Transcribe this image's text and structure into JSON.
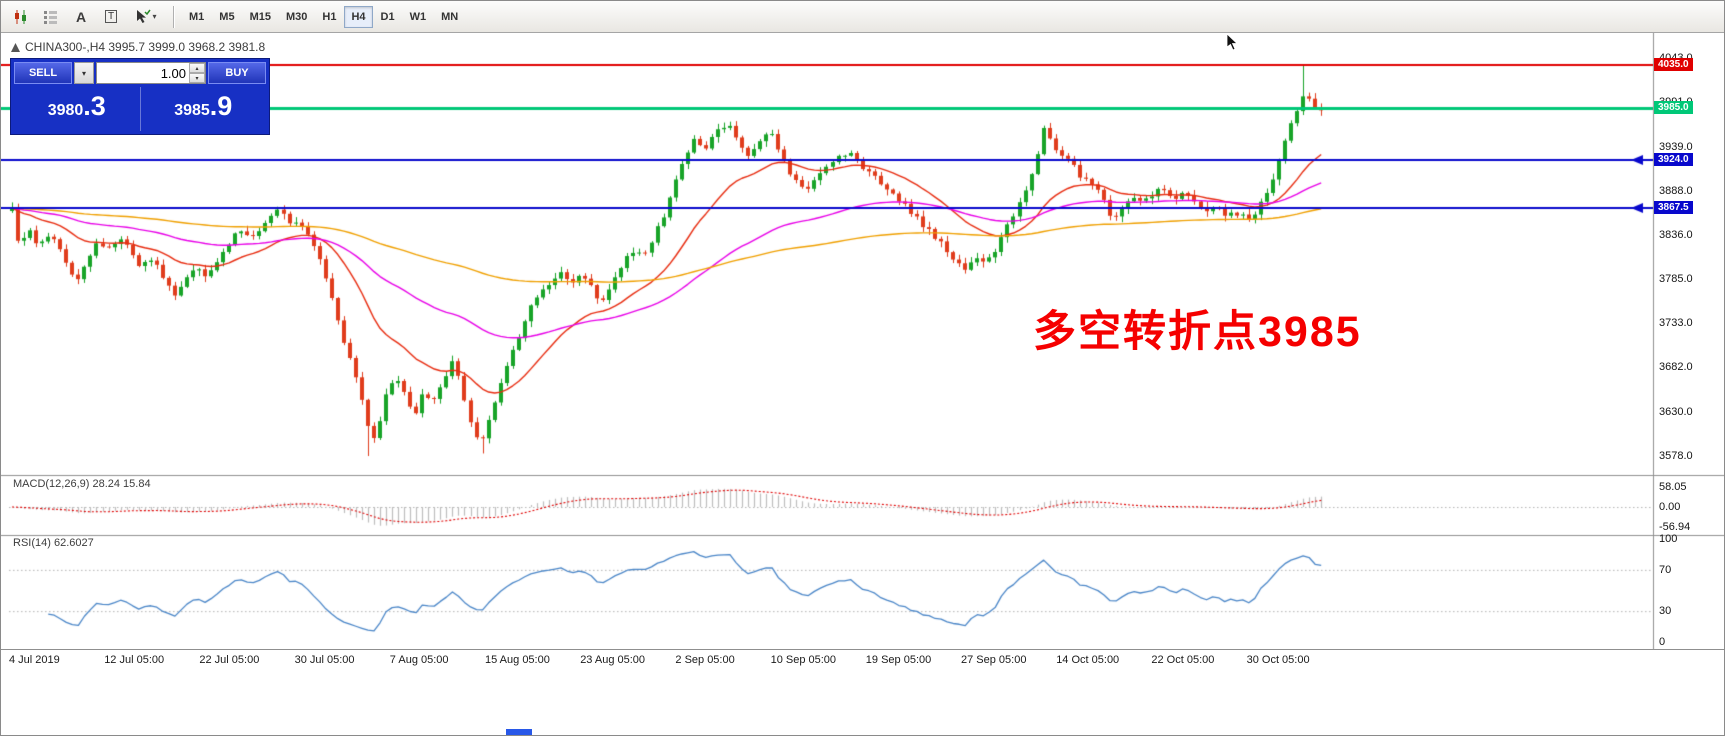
{
  "toolbar": {
    "timeframes": [
      "M1",
      "M5",
      "M15",
      "M30",
      "H1",
      "H4",
      "D1",
      "W1",
      "MN"
    ],
    "active_timeframe": "H4",
    "text_tool_label": "A",
    "label_tool_label": "T"
  },
  "glyphs": {
    "dropdown": "▾",
    "spin_up": "▴",
    "spin_down": "▾"
  },
  "chart": {
    "symbol": "CHINA300-",
    "period": "H4",
    "ohlc_header": "CHINA300-,H4  3995.7 3999.0 3968.2 3981.8",
    "open": "3995.7",
    "high": "3999.0",
    "low": "3968.2",
    "close": "3981.8"
  },
  "trade_panel": {
    "sell_label": "SELL",
    "buy_label": "BUY",
    "volume": "1.00",
    "sell_price_int": "3980",
    "sell_price_dec": ".3",
    "buy_price_int": "3985",
    "buy_price_dec": ".9"
  },
  "annotation": {
    "text": "多空转折点3985",
    "color": "#f50000"
  },
  "price_axis": {
    "ticks": [
      4043.0,
      3991.0,
      3939.0,
      3888.0,
      3836.0,
      3785.0,
      3733.0,
      3682.0,
      3630.0,
      3578.0
    ]
  },
  "hlines": [
    {
      "price": 4035.0,
      "label": "4035.0",
      "color": "#e00000",
      "width": 2,
      "arrow": false
    },
    {
      "price": 3985.0,
      "label": "3985.0",
      "color": "#00c878",
      "width": 3,
      "arrow": false
    },
    {
      "price": 3924.0,
      "label": "3924.0",
      "color": "#0808cc",
      "width": 2,
      "arrow": true
    },
    {
      "price": 3867.5,
      "label": "3867.5",
      "color": "#0808cc",
      "width": 2,
      "arrow": true
    }
  ],
  "macd": {
    "label": "MACD(12,26,9) 28.24 15.84",
    "ticks": [
      "58.05",
      "0.00",
      "-56.94"
    ],
    "tick_values": [
      58.05,
      0,
      -56.94
    ],
    "current_macd": 28.24,
    "current_signal": 15.84
  },
  "rsi": {
    "label": "RSI(14) 62.6027",
    "ticks": [
      "100",
      "70",
      "30",
      "0"
    ],
    "tick_values": [
      100,
      70,
      30,
      0
    ],
    "levels": [
      70,
      30
    ],
    "current": 62.6027
  },
  "time_axis": [
    "4 Jul 2019",
    "12 Jul 05:00",
    "22 Jul 05:00",
    "30 Jul 05:00",
    "7 Aug 05:00",
    "15 Aug 05:00",
    "23 Aug 05:00",
    "2 Sep 05:00",
    "10 Sep 05:00",
    "19 Sep 05:00",
    "27 Sep 05:00",
    "14 Oct 05:00",
    "22 Oct 05:00",
    "30 Oct 05:00"
  ],
  "chart_data": {
    "type": "candlestick",
    "symbol": "CHINA300-",
    "timeframe": "H4",
    "price_range_visible": [
      3578,
      4043
    ],
    "candle_count": 218,
    "last_close": 3981.8,
    "colors": {
      "up": "#18a428",
      "down": "#e03c1c"
    },
    "moving_averages": [
      {
        "period": 20,
        "color": "#e82c10"
      },
      {
        "period": 60,
        "color": "#e800e8"
      },
      {
        "period": 160,
        "color": "#f0a000"
      }
    ],
    "indicators": {
      "macd": {
        "fast": 12,
        "slow": 26,
        "signal": 9,
        "current": [
          28.24,
          15.84
        ]
      },
      "rsi": {
        "period": 14,
        "current": 62.6027
      }
    },
    "high_overrides": {
      "214": 4035
    },
    "low_overrides": {
      "59": 3578,
      "78": 3581
    },
    "close_path": [
      [
        0,
        3866
      ],
      [
        0.006,
        3815
      ],
      [
        0.012,
        3845
      ],
      [
        0.02,
        3820
      ],
      [
        0.03,
        3842
      ],
      [
        0.04,
        3805
      ],
      [
        0.05,
        3780
      ],
      [
        0.058,
        3808
      ],
      [
        0.066,
        3830
      ],
      [
        0.075,
        3818
      ],
      [
        0.085,
        3835
      ],
      [
        0.095,
        3800
      ],
      [
        0.105,
        3812
      ],
      [
        0.115,
        3790
      ],
      [
        0.125,
        3762
      ],
      [
        0.132,
        3780
      ],
      [
        0.14,
        3800
      ],
      [
        0.15,
        3788
      ],
      [
        0.16,
        3815
      ],
      [
        0.172,
        3840
      ],
      [
        0.185,
        3832
      ],
      [
        0.196,
        3855
      ],
      [
        0.205,
        3870
      ],
      [
        0.212,
        3848
      ],
      [
        0.22,
        3852
      ],
      [
        0.228,
        3834
      ],
      [
        0.236,
        3808
      ],
      [
        0.244,
        3765
      ],
      [
        0.252,
        3720
      ],
      [
        0.26,
        3680
      ],
      [
        0.268,
        3640
      ],
      [
        0.274,
        3595
      ],
      [
        0.28,
        3612
      ],
      [
        0.287,
        3655
      ],
      [
        0.294,
        3672
      ],
      [
        0.3,
        3648
      ],
      [
        0.308,
        3628
      ],
      [
        0.315,
        3655
      ],
      [
        0.322,
        3640
      ],
      [
        0.33,
        3668
      ],
      [
        0.338,
        3690
      ],
      [
        0.345,
        3645
      ],
      [
        0.352,
        3605
      ],
      [
        0.358,
        3590
      ],
      [
        0.365,
        3625
      ],
      [
        0.372,
        3655
      ],
      [
        0.38,
        3690
      ],
      [
        0.388,
        3720
      ],
      [
        0.396,
        3752
      ],
      [
        0.404,
        3775
      ],
      [
        0.412,
        3780
      ],
      [
        0.42,
        3792
      ],
      [
        0.428,
        3778
      ],
      [
        0.436,
        3790
      ],
      [
        0.444,
        3772
      ],
      [
        0.45,
        3758
      ],
      [
        0.458,
        3778
      ],
      [
        0.466,
        3800
      ],
      [
        0.474,
        3818
      ],
      [
        0.482,
        3812
      ],
      [
        0.49,
        3835
      ],
      [
        0.498,
        3860
      ],
      [
        0.506,
        3898
      ],
      [
        0.514,
        3930
      ],
      [
        0.522,
        3948
      ],
      [
        0.53,
        3938
      ],
      [
        0.538,
        3955
      ],
      [
        0.546,
        3968
      ],
      [
        0.554,
        3950
      ],
      [
        0.562,
        3930
      ],
      [
        0.57,
        3942
      ],
      [
        0.578,
        3960
      ],
      [
        0.585,
        3938
      ],
      [
        0.592,
        3915
      ],
      [
        0.6,
        3895
      ],
      [
        0.608,
        3890
      ],
      [
        0.616,
        3905
      ],
      [
        0.624,
        3920
      ],
      [
        0.632,
        3928
      ],
      [
        0.64,
        3932
      ],
      [
        0.648,
        3918
      ],
      [
        0.656,
        3908
      ],
      [
        0.664,
        3898
      ],
      [
        0.672,
        3888
      ],
      [
        0.68,
        3872
      ],
      [
        0.688,
        3862
      ],
      [
        0.696,
        3848
      ],
      [
        0.704,
        3835
      ],
      [
        0.712,
        3822
      ],
      [
        0.72,
        3805
      ],
      [
        0.728,
        3798
      ],
      [
        0.736,
        3808
      ],
      [
        0.744,
        3800
      ],
      [
        0.752,
        3822
      ],
      [
        0.76,
        3845
      ],
      [
        0.768,
        3870
      ],
      [
        0.776,
        3895
      ],
      [
        0.782,
        3920
      ],
      [
        0.788,
        3958
      ],
      [
        0.794,
        3948
      ],
      [
        0.8,
        3930
      ],
      [
        0.808,
        3922
      ],
      [
        0.816,
        3905
      ],
      [
        0.824,
        3898
      ],
      [
        0.832,
        3882
      ],
      [
        0.84,
        3858
      ],
      [
        0.848,
        3865
      ],
      [
        0.856,
        3878
      ],
      [
        0.864,
        3872
      ],
      [
        0.872,
        3885
      ],
      [
        0.88,
        3892
      ],
      [
        0.888,
        3878
      ],
      [
        0.896,
        3885
      ],
      [
        0.904,
        3872
      ],
      [
        0.912,
        3862
      ],
      [
        0.92,
        3868
      ],
      [
        0.928,
        3858
      ],
      [
        0.936,
        3862
      ],
      [
        0.944,
        3852
      ],
      [
        0.95,
        3860
      ],
      [
        0.958,
        3885
      ],
      [
        0.966,
        3915
      ],
      [
        0.974,
        3952
      ],
      [
        0.982,
        3985
      ],
      [
        0.988,
        4002
      ],
      [
        0.993,
        3988
      ],
      [
        1,
        3981.8
      ]
    ]
  }
}
